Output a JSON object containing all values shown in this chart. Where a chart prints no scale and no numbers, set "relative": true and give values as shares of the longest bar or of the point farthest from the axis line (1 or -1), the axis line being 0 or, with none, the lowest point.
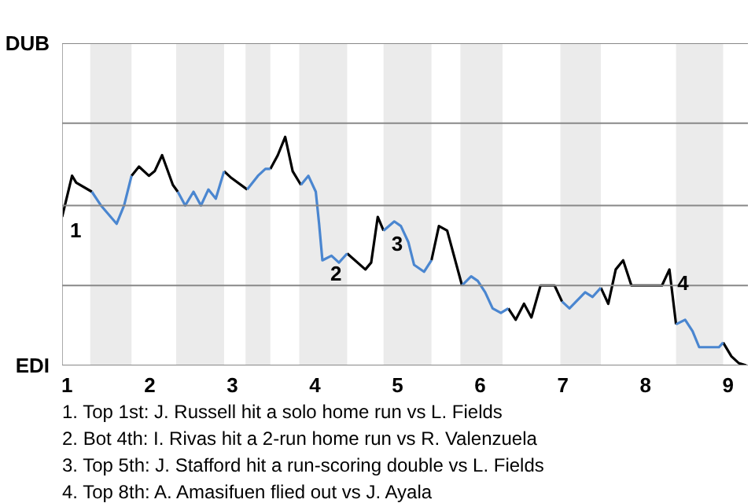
{
  "chart_data": {
    "type": "line",
    "relative": true,
    "x": [
      0.94,
      1.06,
      1.11,
      1.3,
      1.41,
      1.6,
      1.69,
      1.78,
      1.87,
      1.99,
      2.06,
      2.15,
      2.28,
      2.34,
      2.43,
      2.53,
      2.62,
      2.71,
      2.8,
      2.9,
      2.99,
      3.18,
      3.31,
      3.4,
      3.46,
      3.55,
      3.64,
      3.73,
      3.83,
      3.92,
      4.01,
      4.05,
      4.09,
      4.2,
      4.29,
      4.39,
      4.61,
      4.68,
      4.76,
      4.83,
      4.96,
      5.04,
      5.13,
      5.2,
      5.32,
      5.41,
      5.5,
      5.6,
      5.78,
      5.89,
      5.97,
      6.06,
      6.15,
      6.25,
      6.34,
      6.43,
      6.53,
      6.62,
      6.73,
      6.9,
      6.99,
      7.08,
      7.27,
      7.36,
      7.46,
      7.55,
      7.64,
      7.73,
      7.83,
      8.2,
      8.29,
      8.37,
      8.48,
      8.57,
      8.65,
      8.89,
      8.94,
      9.04,
      9.13,
      9.22
    ],
    "series": [
      {
        "color": "#000000",
        "values": [
          0.65,
          0.83,
          0.8,
          0.76,
          null,
          null,
          null,
          0.83,
          0.87,
          0.83,
          0.85,
          0.92,
          0.79,
          0.76,
          null,
          null,
          null,
          null,
          null,
          0.85,
          0.82,
          0.77,
          null,
          null,
          0.86,
          0.92,
          1,
          0.85,
          0.79,
          null,
          null,
          null,
          null,
          null,
          null,
          0.49,
          0.42,
          0.45,
          0.65,
          0.59,
          null,
          null,
          null,
          null,
          null,
          0.46,
          0.61,
          0.59,
          0.35,
          null,
          null,
          null,
          null,
          null,
          0.25,
          0.2,
          0.27,
          0.21,
          0.35,
          0.35,
          0.28,
          null,
          null,
          null,
          0.34,
          0.27,
          0.42,
          0.46,
          0.35,
          0.35,
          0.42,
          0.18,
          null,
          null,
          null,
          null,
          0.1,
          0.04,
          0.01,
          0
        ]
      },
      {
        "color": "#4a86d0",
        "values": [
          null,
          null,
          null,
          0.76,
          0.7,
          0.62,
          0.7,
          0.83,
          null,
          null,
          null,
          null,
          null,
          0.76,
          0.7,
          0.76,
          0.7,
          0.77,
          0.73,
          0.85,
          null,
          0.77,
          0.83,
          0.86,
          0.86,
          null,
          null,
          null,
          0.79,
          0.83,
          0.76,
          0.62,
          0.46,
          0.48,
          0.45,
          0.49,
          null,
          null,
          null,
          0.59,
          0.63,
          0.61,
          0.54,
          0.44,
          0.41,
          0.46,
          null,
          null,
          0.35,
          0.39,
          0.37,
          0.32,
          0.25,
          0.23,
          0.25,
          null,
          null,
          null,
          null,
          null,
          0.28,
          0.25,
          0.32,
          0.3,
          0.34,
          null,
          null,
          null,
          null,
          null,
          null,
          0.18,
          0.2,
          0.15,
          0.08,
          0.08,
          0.1,
          null,
          null,
          null
        ]
      }
    ],
    "xlim": [
      0.94,
      9.24
    ],
    "xticks": [
      1,
      2,
      3,
      4,
      5,
      6,
      7,
      8,
      9
    ],
    "ref_lines": [
      {
        "axis": "y",
        "value": 0,
        "label": "EDI",
        "color": "#888888"
      },
      {
        "axis": "y",
        "value": 0.35,
        "color": "#888888"
      },
      {
        "axis": "y",
        "value": 0.7,
        "color": "#888888"
      },
      {
        "axis": "y",
        "value": 1.06,
        "color": "#888888"
      },
      {
        "axis": "y",
        "value": 1.41,
        "label": "DUB",
        "color": "#888888"
      }
    ],
    "line_style": "solid",
    "bands": [
      {
        "axis": "x",
        "from": 1.28,
        "to": 1.78,
        "color": "#ebebeb"
      },
      {
        "axis": "x",
        "from": 2.32,
        "to": 2.9,
        "color": "#ebebeb"
      },
      {
        "axis": "x",
        "from": 3.16,
        "to": 3.46,
        "color": "#ebebeb"
      },
      {
        "axis": "x",
        "from": 3.81,
        "to": 4.39,
        "color": "#ebebeb"
      },
      {
        "axis": "x",
        "from": 4.83,
        "to": 5.41,
        "color": "#ebebeb"
      },
      {
        "axis": "x",
        "from": 5.76,
        "to": 6.27,
        "color": "#ebebeb"
      },
      {
        "axis": "x",
        "from": 6.97,
        "to": 7.46,
        "color": "#ebebeb"
      },
      {
        "axis": "x",
        "from": 8.37,
        "to": 8.94,
        "color": "#ebebeb"
      }
    ],
    "annotations": [
      {
        "text": "1",
        "x": 0.94,
        "y": 0.65
      },
      {
        "text": "2",
        "x": 4.09,
        "y": 0.46
      },
      {
        "text": "3",
        "x": 4.83,
        "y": 0.59
      },
      {
        "text": "4",
        "x": 8.29,
        "y": 0.42
      },
      "1. Top 1st: J. Russell hit a solo home run vs L. Fields",
      "2. Bot 4th: I. Rivas hit a 2-run home run vs R. Valenzuela",
      "3. Top 5th: J. Stafford hit a run-scoring double vs L. Fields",
      "4. Top 8th: A. Amasifuen flied out vs J. Ayala"
    ]
  }
}
